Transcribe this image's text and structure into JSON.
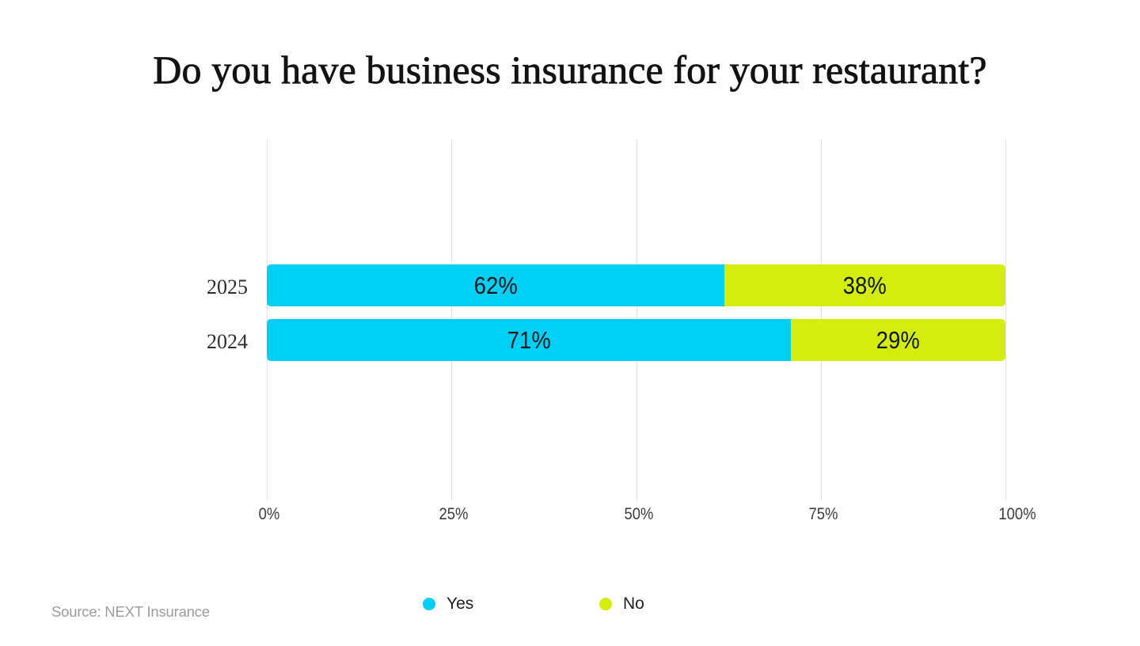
{
  "title": "Do you have business insurance for your restaurant?",
  "source_note": "Source: NEXT Insurance",
  "colors": {
    "yes": "#00cff5",
    "no": "#d5ed0c",
    "gridline": "#e1e1e1",
    "background": "#ffffff"
  },
  "legend": {
    "items": [
      {
        "label": "Yes",
        "color": "#00cff5"
      },
      {
        "label": "No",
        "color": "#d5ed0c"
      }
    ]
  },
  "chart_data": {
    "type": "bar",
    "orientation": "horizontal",
    "stacked": true,
    "title": "Do you have business insurance for your restaurant?",
    "categories": [
      "2025",
      "2024"
    ],
    "series": [
      {
        "name": "Yes",
        "color": "#00cff5",
        "values": [
          62,
          71
        ]
      },
      {
        "name": "No",
        "color": "#d5ed0c",
        "values": [
          38,
          29
        ]
      }
    ],
    "value_labels": [
      [
        "62%",
        "38%"
      ],
      [
        "71%",
        "29%"
      ]
    ],
    "xlabel": "",
    "ylabel": "",
    "xlim": [
      0,
      100
    ],
    "x_ticks": [
      {
        "value": 0,
        "label": "0%"
      },
      {
        "value": 25,
        "label": "25%"
      },
      {
        "value": 50,
        "label": "50%"
      },
      {
        "value": 75,
        "label": "75%"
      },
      {
        "value": 100,
        "label": "100%"
      }
    ],
    "grid": "vertical",
    "legend_position": "bottom"
  }
}
